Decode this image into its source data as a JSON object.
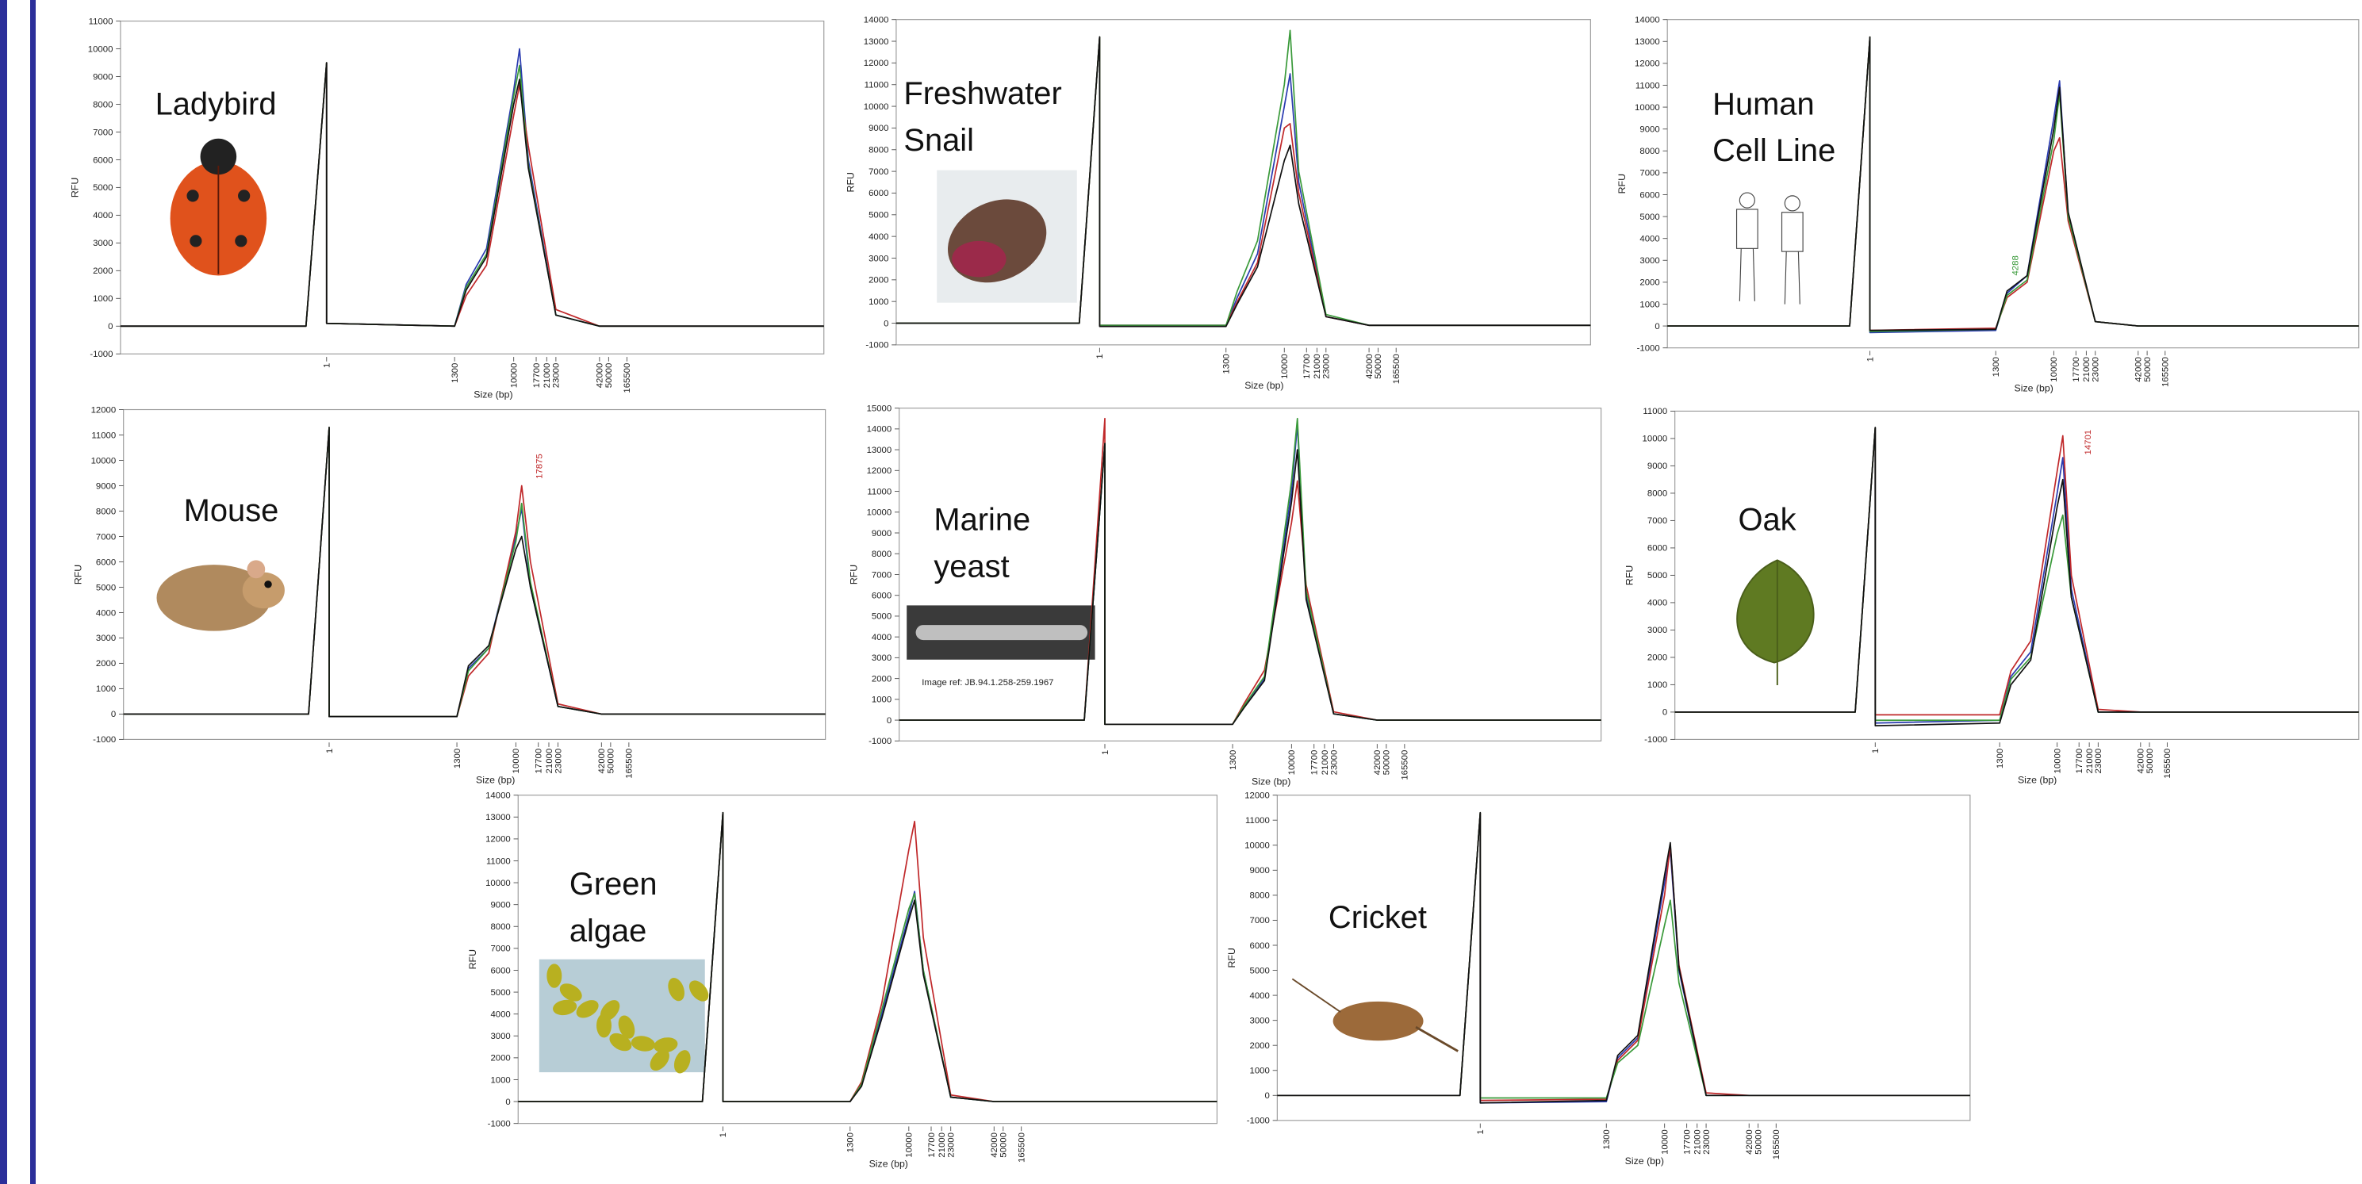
{
  "chart_data": [
    {
      "type": "line",
      "title": [
        "Ladybird"
      ],
      "y_label": "RFU",
      "x_label": "Size (bp)",
      "xlim": [
        0,
        400000
      ],
      "xticks": [
        1,
        1300,
        10000,
        17700,
        21000,
        23000,
        42000,
        50000,
        165500
      ],
      "ylim": [
        -1000,
        11000
      ],
      "yticks": [
        -1000,
        0,
        1000,
        2000,
        3000,
        4000,
        5000,
        6000,
        7000,
        8000,
        9000,
        10000,
        11000
      ],
      "x": [
        0,
        0.9,
        1,
        1.1,
        1300,
        3000,
        6000,
        10000,
        12000,
        15000,
        23000,
        42000,
        165500,
        400000
      ],
      "series": [
        {
          "color": "#2a3bb0",
          "values": [
            0,
            0,
            9500,
            100,
            0,
            1500,
            2800,
            8500,
            10000,
            6000,
            400,
            0,
            0,
            0
          ]
        },
        {
          "color": "#c0282a",
          "values": [
            0,
            0,
            9500,
            100,
            0,
            1100,
            2200,
            7600,
            8700,
            6500,
            600,
            0,
            0,
            0
          ]
        },
        {
          "color": "#3a9a3a",
          "values": [
            0,
            0,
            9500,
            100,
            0,
            1400,
            2600,
            8300,
            9400,
            5800,
            400,
            0,
            0,
            0
          ]
        },
        {
          "color": "#111111",
          "values": [
            0,
            0,
            9500,
            100,
            0,
            1300,
            2500,
            8000,
            8900,
            5700,
            400,
            0,
            0,
            0
          ]
        }
      ]
    },
    {
      "type": "line",
      "title": [
        "Freshwater",
        "Snail"
      ],
      "y_label": "RFU",
      "x_label": "Size (bp)",
      "xlim": [
        0,
        400000
      ],
      "xticks": [
        1,
        1300,
        10000,
        17700,
        21000,
        23000,
        42000,
        50000,
        165500
      ],
      "ylim": [
        -1000,
        14000
      ],
      "yticks": [
        -1000,
        0,
        1000,
        2000,
        3000,
        4000,
        5000,
        6000,
        7000,
        8000,
        9000,
        10000,
        11000,
        12000,
        13000,
        14000
      ],
      "x": [
        0,
        0.9,
        1,
        1.1,
        1300,
        3000,
        6000,
        10000,
        12000,
        15000,
        23000,
        42000,
        165500,
        400000
      ],
      "series": [
        {
          "color": "#2a3bb0",
          "values": [
            0,
            0,
            13200,
            -100,
            -100,
            1200,
            3200,
            10000,
            11500,
            6500,
            300,
            -100,
            -100,
            -100
          ]
        },
        {
          "color": "#c0282a",
          "values": [
            0,
            0,
            13200,
            -100,
            -100,
            1000,
            2800,
            9000,
            9200,
            6000,
            300,
            -100,
            -100,
            -100
          ]
        },
        {
          "color": "#3a9a3a",
          "values": [
            0,
            0,
            13200,
            -100,
            -100,
            1500,
            3800,
            11000,
            13500,
            7000,
            400,
            -100,
            -100,
            -100
          ]
        },
        {
          "color": "#111111",
          "values": [
            0,
            0,
            13200,
            -150,
            -150,
            900,
            2600,
            7500,
            8200,
            5500,
            300,
            -100,
            -100,
            -100
          ]
        }
      ]
    },
    {
      "type": "line",
      "title": [
        "Human",
        "Cell Line"
      ],
      "y_label": "RFU",
      "x_label": "Size (bp)",
      "xlim": [
        0,
        400000
      ],
      "xticks": [
        1,
        1300,
        10000,
        17700,
        21000,
        23000,
        42000,
        50000,
        165500
      ],
      "ylim": [
        -1000,
        14000
      ],
      "yticks": [
        -1000,
        0,
        1000,
        2000,
        3000,
        4000,
        5000,
        6000,
        7000,
        8000,
        9000,
        10000,
        11000,
        12000,
        13000,
        14000
      ],
      "x": [
        0,
        0.9,
        1,
        1.1,
        1300,
        3000,
        6000,
        10000,
        12000,
        15000,
        23000,
        42000,
        165500,
        400000
      ],
      "annotations": [
        {
          "text": "4288",
          "color": "#3a9a3a"
        }
      ],
      "series": [
        {
          "color": "#2a3bb0",
          "values": [
            0,
            0,
            13200,
            -300,
            -200,
            1500,
            2300,
            9500,
            11200,
            5000,
            200,
            0,
            0,
            0
          ]
        },
        {
          "color": "#c0282a",
          "values": [
            0,
            0,
            13200,
            -200,
            -100,
            1300,
            2000,
            8000,
            8600,
            4800,
            200,
            0,
            0,
            0
          ]
        },
        {
          "color": "#3a9a3a",
          "values": [
            0,
            0,
            13200,
            -250,
            -150,
            1400,
            2100,
            8500,
            10600,
            5000,
            200,
            0,
            0,
            0
          ]
        },
        {
          "color": "#111111",
          "values": [
            0,
            0,
            13200,
            -200,
            -150,
            1600,
            2300,
            9000,
            10900,
            5200,
            200,
            0,
            0,
            0
          ]
        }
      ]
    },
    {
      "type": "line",
      "title": [
        "Mouse"
      ],
      "y_label": "RFU",
      "x_label": "Size (bp)",
      "xlim": [
        0,
        400000
      ],
      "xticks": [
        1,
        1300,
        10000,
        17700,
        21000,
        23000,
        42000,
        50000,
        165500
      ],
      "ylim": [
        -1000,
        12000
      ],
      "yticks": [
        -1000,
        0,
        1000,
        2000,
        3000,
        4000,
        5000,
        6000,
        7000,
        8000,
        9000,
        10000,
        11000,
        12000
      ],
      "x": [
        0,
        0.9,
        1,
        1.1,
        1300,
        3000,
        6000,
        10000,
        12000,
        15000,
        23000,
        42000,
        165500,
        400000
      ],
      "annotations": [
        {
          "text": "17875",
          "color": "#c0282a"
        }
      ],
      "series": [
        {
          "color": "#2a3bb0",
          "values": [
            0,
            0,
            11300,
            -100,
            -100,
            1800,
            2600,
            7000,
            8100,
            5000,
            300,
            0,
            0,
            0
          ]
        },
        {
          "color": "#c0282a",
          "values": [
            0,
            0,
            11300,
            -100,
            -100,
            1500,
            2400,
            7200,
            9000,
            6000,
            400,
            0,
            0,
            0
          ]
        },
        {
          "color": "#3a9a3a",
          "values": [
            0,
            0,
            11300,
            -100,
            -100,
            1700,
            2600,
            6800,
            8300,
            5200,
            300,
            0,
            0,
            0
          ]
        },
        {
          "color": "#111111",
          "values": [
            0,
            0,
            11300,
            -100,
            -100,
            1900,
            2700,
            6500,
            7000,
            5000,
            300,
            0,
            0,
            0
          ]
        }
      ]
    },
    {
      "type": "line",
      "title": [
        "Marine",
        "yeast"
      ],
      "y_label": "RFU",
      "x_label": "Size (bp)",
      "xlim": [
        0,
        400000
      ],
      "xticks": [
        1,
        1300,
        10000,
        17700,
        21000,
        23000,
        42000,
        50000,
        165500
      ],
      "ylim": [
        -1000,
        15000
      ],
      "yticks": [
        -1000,
        0,
        1000,
        2000,
        3000,
        4000,
        5000,
        6000,
        7000,
        8000,
        9000,
        10000,
        11000,
        12000,
        13000,
        14000,
        15000
      ],
      "x": [
        0,
        0.9,
        1,
        1.1,
        1300,
        3000,
        6000,
        10000,
        12000,
        15000,
        23000,
        42000,
        165500,
        400000
      ],
      "annotations": [
        {
          "text": "Image ref: JB.94.1.258-259.1967",
          "color": "#222222"
        }
      ],
      "series": [
        {
          "color": "#2a3bb0",
          "values": [
            0,
            0,
            13300,
            -200,
            -200,
            700,
            2000,
            11000,
            14200,
            6000,
            300,
            0,
            0,
            0
          ]
        },
        {
          "color": "#c0282a",
          "values": [
            0,
            0,
            14500,
            -200,
            -200,
            800,
            2400,
            9500,
            11500,
            6500,
            400,
            0,
            0,
            0
          ]
        },
        {
          "color": "#3a9a3a",
          "values": [
            0,
            0,
            13300,
            -200,
            -200,
            700,
            2100,
            11500,
            14500,
            6200,
            300,
            0,
            0,
            0
          ]
        },
        {
          "color": "#111111",
          "values": [
            0,
            0,
            13300,
            -200,
            -200,
            600,
            1900,
            10500,
            13000,
            5800,
            300,
            0,
            0,
            0
          ]
        }
      ]
    },
    {
      "type": "line",
      "title": [
        "Oak"
      ],
      "y_label": "RFU",
      "x_label": "Size (bp)",
      "xlim": [
        0,
        400000
      ],
      "xticks": [
        1,
        1300,
        10000,
        17700,
        21000,
        23000,
        42000,
        50000,
        165500
      ],
      "ylim": [
        -1000,
        11000
      ],
      "yticks": [
        -1000,
        0,
        1000,
        2000,
        3000,
        4000,
        5000,
        6000,
        7000,
        8000,
        9000,
        10000,
        11000
      ],
      "x": [
        0,
        0.9,
        1,
        1.1,
        1300,
        3000,
        6000,
        10000,
        12000,
        15000,
        23000,
        42000,
        165500,
        400000
      ],
      "annotations": [
        {
          "text": "14701",
          "color": "#c0282a"
        }
      ],
      "series": [
        {
          "color": "#2a3bb0",
          "values": [
            0,
            0,
            10400,
            -400,
            -300,
            1300,
            2200,
            8000,
            9300,
            4500,
            0,
            0,
            0,
            0
          ]
        },
        {
          "color": "#c0282a",
          "values": [
            0,
            0,
            10400,
            -100,
            -100,
            1500,
            2600,
            8800,
            10100,
            5000,
            100,
            0,
            0,
            0
          ]
        },
        {
          "color": "#3a9a3a",
          "values": [
            0,
            0,
            10400,
            -300,
            -300,
            1200,
            2000,
            6500,
            7200,
            4200,
            0,
            0,
            0,
            0
          ]
        },
        {
          "color": "#111111",
          "values": [
            0,
            0,
            10400,
            -500,
            -400,
            1000,
            1900,
            7500,
            8500,
            4200,
            0,
            0,
            0,
            0
          ]
        }
      ]
    },
    {
      "type": "line",
      "title": [
        "Green",
        "algae"
      ],
      "y_label": "RFU",
      "x_label": "Size (bp)",
      "xlim": [
        0,
        400000
      ],
      "xticks": [
        1,
        1300,
        10000,
        17700,
        21000,
        23000,
        42000,
        50000,
        165500
      ],
      "ylim": [
        -1000,
        14000
      ],
      "yticks": [
        -1000,
        0,
        1000,
        2000,
        3000,
        4000,
        5000,
        6000,
        7000,
        8000,
        9000,
        10000,
        11000,
        12000,
        13000,
        14000
      ],
      "x": [
        0,
        0.9,
        1,
        1.1,
        1300,
        3000,
        6000,
        10000,
        12000,
        15000,
        23000,
        42000,
        165500,
        400000
      ],
      "series": [
        {
          "color": "#2a3bb0",
          "values": [
            0,
            0,
            13200,
            0,
            0,
            800,
            4000,
            8500,
            9600,
            6000,
            200,
            0,
            0,
            0
          ]
        },
        {
          "color": "#c0282a",
          "values": [
            0,
            0,
            13200,
            0,
            0,
            900,
            4500,
            11500,
            12800,
            7500,
            300,
            0,
            0,
            0
          ]
        },
        {
          "color": "#3a9a3a",
          "values": [
            0,
            0,
            13200,
            0,
            0,
            800,
            4200,
            8800,
            9500,
            6000,
            200,
            0,
            0,
            0
          ]
        },
        {
          "color": "#111111",
          "values": [
            0,
            0,
            13200,
            0,
            0,
            700,
            3800,
            8300,
            9200,
            5800,
            200,
            0,
            0,
            0
          ]
        }
      ]
    },
    {
      "type": "line",
      "title": [
        "Cricket"
      ],
      "y_label": "RFU",
      "x_label": "Size (bp)",
      "xlim": [
        0,
        400000
      ],
      "xticks": [
        1,
        1300,
        10000,
        17700,
        21000,
        23000,
        42000,
        50000,
        165500
      ],
      "ylim": [
        -1000,
        12000
      ],
      "yticks": [
        -1000,
        0,
        1000,
        2000,
        3000,
        4000,
        5000,
        6000,
        7000,
        8000,
        9000,
        10000,
        11000,
        12000
      ],
      "x": [
        0,
        0.9,
        1,
        1.1,
        1300,
        3000,
        6000,
        10000,
        12000,
        15000,
        23000,
        42000,
        165500,
        400000
      ],
      "series": [
        {
          "color": "#2a3bb0",
          "values": [
            0,
            0,
            11300,
            -300,
            -250,
            1500,
            2300,
            8500,
            9800,
            5000,
            0,
            0,
            0,
            0
          ]
        },
        {
          "color": "#c0282a",
          "values": [
            0,
            0,
            11300,
            -200,
            -150,
            1400,
            2200,
            8000,
            10000,
            5200,
            100,
            0,
            0,
            0
          ]
        },
        {
          "color": "#3a9a3a",
          "values": [
            0,
            0,
            11300,
            -100,
            -100,
            1300,
            2000,
            6800,
            7800,
            4500,
            0,
            0,
            0,
            0
          ]
        },
        {
          "color": "#111111",
          "values": [
            0,
            0,
            11300,
            -300,
            -200,
            1600,
            2400,
            8800,
            10100,
            5100,
            0,
            0,
            0,
            0
          ]
        }
      ]
    }
  ]
}
